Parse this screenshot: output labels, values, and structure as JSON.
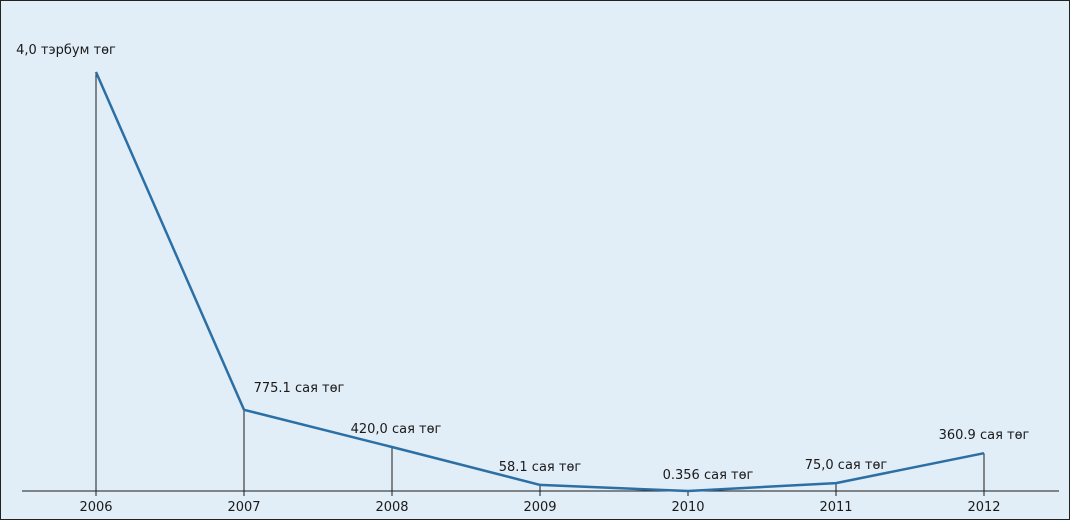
{
  "chart_data": {
    "type": "line",
    "categories": [
      "2006",
      "2007",
      "2008",
      "2009",
      "2010",
      "2011",
      "2012"
    ],
    "values": [
      4000,
      775.1,
      420.0,
      58.1,
      0.356,
      75.0,
      360.9
    ],
    "value_unit": "сая төг",
    "data_labels": [
      "4,0 тэрбум төг",
      "775.1 сая төг",
      "420,0 сая төг",
      "58.1 сая төг",
      "0.356 сая төг",
      "75,0 сая төг",
      "360.9 сая төг"
    ],
    "title": "",
    "xlabel": "",
    "ylabel": "",
    "ylim": [
      0,
      4000
    ],
    "grid": false,
    "legend": "none",
    "colors": {
      "line": "#2b6fa5",
      "drop_lines": "#1a1a1a",
      "axis": "#1a1a1a",
      "background": "#e1edf7"
    }
  }
}
